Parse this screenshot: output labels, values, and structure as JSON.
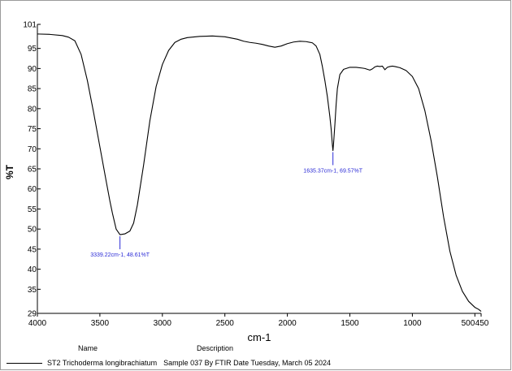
{
  "chart_data": {
    "type": "line",
    "xlabel": "cm-1",
    "ylabel": "%T",
    "xlim": [
      4000,
      450
    ],
    "ylim": [
      29,
      101
    ],
    "x_ticks": [
      4000,
      3500,
      3000,
      2500,
      2000,
      1500,
      1000,
      500
    ],
    "x_tick_labels": [
      "4000",
      "3500",
      "3000",
      "2500",
      "2000",
      "1500",
      "1000",
      "500"
    ],
    "x_end_label": "450",
    "y_ticks": [
      29,
      35,
      40,
      45,
      50,
      55,
      60,
      65,
      70,
      75,
      80,
      85,
      90,
      95,
      101
    ],
    "y_tick_labels": [
      "29",
      "35",
      "40",
      "45",
      "50",
      "55",
      "60",
      "65",
      "70",
      "75",
      "80",
      "85",
      "90",
      "95",
      "101"
    ],
    "series": [
      {
        "color": "#000000",
        "x": [
          4000,
          3900,
          3800,
          3750,
          3700,
          3650,
          3600,
          3550,
          3500,
          3450,
          3420,
          3400,
          3370,
          3339.22,
          3300,
          3260,
          3230,
          3200,
          3150,
          3100,
          3050,
          3000,
          2950,
          2900,
          2850,
          2800,
          2700,
          2600,
          2500,
          2400,
          2350,
          2300,
          2250,
          2200,
          2150,
          2100,
          2050,
          2000,
          1950,
          1900,
          1850,
          1800,
          1770,
          1740,
          1720,
          1700,
          1680,
          1660,
          1650,
          1640,
          1635.37,
          1630,
          1620,
          1610,
          1600,
          1580,
          1550,
          1500,
          1450,
          1400,
          1380,
          1360,
          1340,
          1320,
          1300,
          1280,
          1260,
          1240,
          1220,
          1200,
          1180,
          1160,
          1140,
          1100,
          1050,
          1000,
          950,
          900,
          850,
          800,
          750,
          700,
          650,
          600,
          550,
          500,
          470,
          450
        ],
        "y": [
          98.6,
          98.5,
          98.2,
          97.8,
          96.9,
          93.5,
          87.0,
          79.0,
          70.5,
          62.0,
          57.0,
          54.0,
          50.0,
          48.61,
          48.8,
          49.5,
          51.5,
          56.0,
          66.0,
          77.0,
          85.5,
          91.0,
          94.5,
          96.5,
          97.3,
          97.7,
          98.0,
          98.1,
          97.9,
          97.3,
          96.8,
          96.5,
          96.3,
          96.0,
          95.6,
          95.3,
          95.6,
          96.2,
          96.6,
          96.8,
          96.7,
          96.4,
          95.6,
          93.5,
          90.5,
          87.0,
          83.0,
          78.0,
          75.0,
          71.0,
          69.57,
          71.5,
          76.0,
          81.0,
          85.0,
          88.5,
          89.8,
          90.3,
          90.3,
          90.1,
          90.0,
          89.8,
          89.6,
          89.9,
          90.4,
          90.6,
          90.5,
          90.6,
          89.7,
          90.3,
          90.5,
          90.6,
          90.5,
          90.2,
          89.5,
          88.0,
          85.0,
          79.5,
          72.0,
          63.0,
          53.0,
          44.5,
          38.5,
          34.5,
          32.0,
          30.5,
          30.0,
          29.5
        ]
      }
    ],
    "annotations": [
      {
        "x": 3339.22,
        "y": 48.61,
        "text": "3339.22cm-1, 48.61%T"
      },
      {
        "x": 1635.37,
        "y": 69.57,
        "text": "1635.37cm-1, 69.57%T"
      }
    ]
  },
  "legend": {
    "name_header": "Name",
    "description_header": "Description",
    "entries": [
      {
        "name": "ST2 Trichoderma longibrachiatum",
        "description": "Sample 037 By FTIR Date Tuesday, March 05 2024",
        "color": "#000000"
      }
    ]
  }
}
